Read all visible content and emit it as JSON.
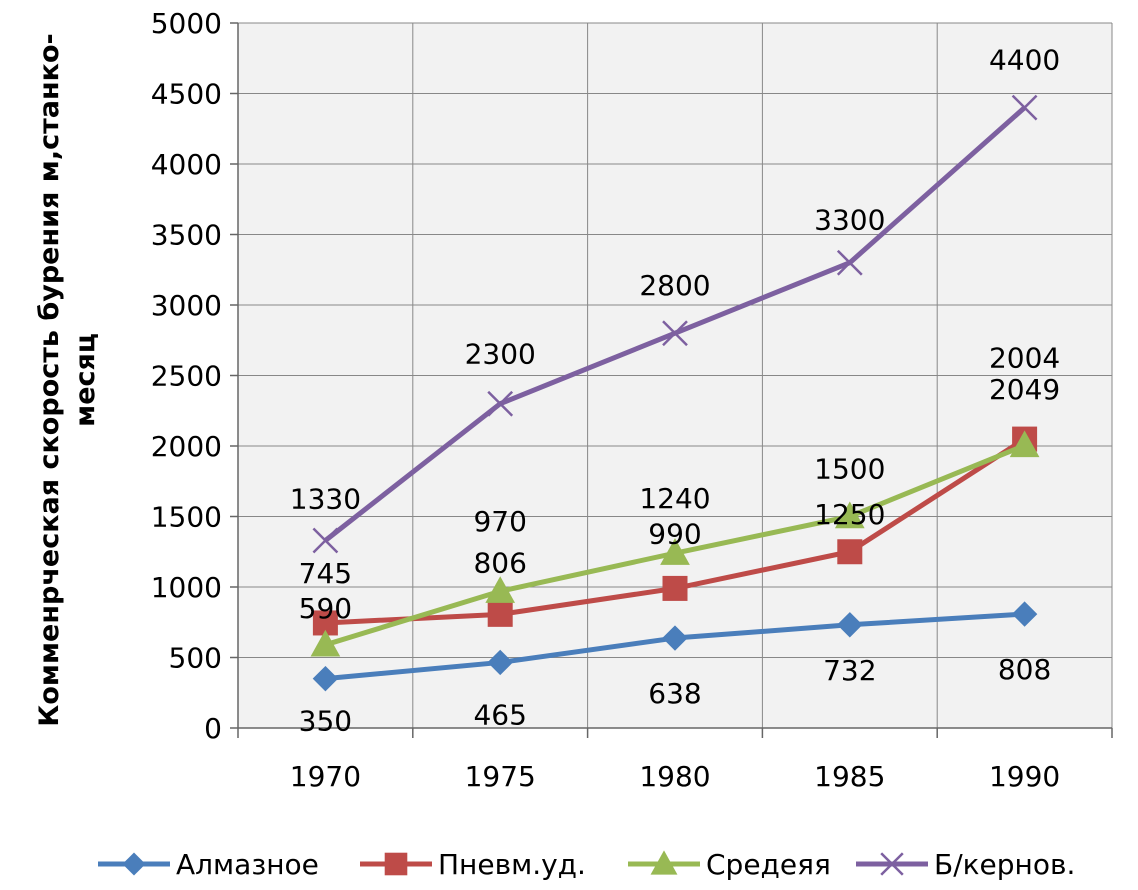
{
  "chart_data": {
    "type": "line",
    "categories": [
      "1970",
      "1975",
      "1980",
      "1985",
      "1990"
    ],
    "ylabel_lines": [
      "Комменрческая скорость бурения м,станко-",
      "месяц"
    ],
    "ylim": [
      0,
      5000
    ],
    "yticks": [
      0,
      500,
      1000,
      1500,
      2000,
      2500,
      3000,
      3500,
      4000,
      4500,
      5000
    ],
    "grid": true,
    "legend_position": "bottom",
    "series": [
      {
        "name": "Алмазное",
        "color": "#4a7ebb",
        "marker": "diamond",
        "values": [
          350,
          465,
          638,
          732,
          808
        ],
        "labels": [
          "350",
          "465",
          "638",
          "732",
          "808"
        ]
      },
      {
        "name": "Пневм.уд.",
        "color": "#be4b48",
        "marker": "square",
        "values": [
          745,
          806,
          990,
          1250,
          2049
        ],
        "labels": [
          "745",
          "806",
          "990",
          "1250",
          "2049"
        ]
      },
      {
        "name": "Средеяя",
        "color": "#98b954",
        "marker": "triangle",
        "values": [
          590,
          970,
          1240,
          1500,
          2004
        ],
        "labels": [
          "590",
          "970",
          "1240",
          "1500",
          "2004"
        ]
      },
      {
        "name": "Б/кернов.",
        "color": "#7d60a0",
        "marker": "x",
        "values": [
          1330,
          2300,
          2800,
          3300,
          4400
        ],
        "labels": [
          "1330",
          "2300",
          "2800",
          "3300",
          "4400"
        ]
      }
    ]
  }
}
